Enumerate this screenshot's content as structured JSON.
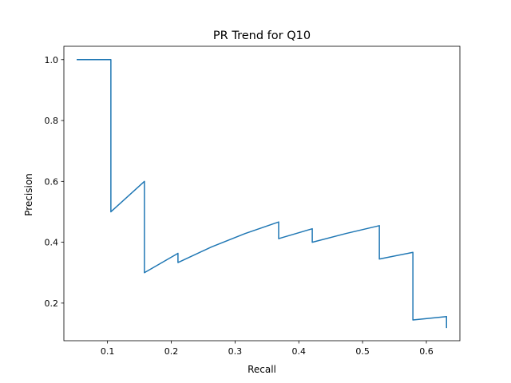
{
  "chart_data": {
    "type": "line",
    "title": "PR Trend for Q10",
    "xlabel": "Recall",
    "ylabel": "Precision",
    "xlim": [
      0.0316,
      0.6526
    ],
    "ylim": [
      0.0764,
      1.044
    ],
    "xticks": [
      0.1,
      0.2,
      0.3,
      0.4,
      0.5,
      0.6
    ],
    "xtick_labels": [
      "0.1",
      "0.2",
      "0.3",
      "0.4",
      "0.5",
      "0.6"
    ],
    "yticks": [
      0.2,
      0.4,
      0.6,
      0.8,
      1.0
    ],
    "ytick_labels": [
      "0.2",
      "0.4",
      "0.6",
      "0.8",
      "1.0"
    ],
    "grid": false,
    "line_color": "#1f77b4",
    "series": [
      {
        "x": [
          0.0526,
          0.1053,
          0.1053,
          0.1579,
          0.1579,
          0.2105,
          0.2105,
          0.2632,
          0.3158,
          0.3684,
          0.3684,
          0.4211,
          0.4211,
          0.4737,
          0.5263,
          0.5263,
          0.5789,
          0.5789,
          0.6316,
          0.6316
        ],
        "y": [
          1.0,
          1.0,
          0.5,
          0.6,
          0.3,
          0.3636,
          0.3333,
          0.3846,
          0.4286,
          0.4667,
          0.4118,
          0.4444,
          0.4,
          0.4286,
          0.4545,
          0.3448,
          0.3667,
          0.1447,
          0.1558,
          0.12
        ]
      }
    ]
  }
}
